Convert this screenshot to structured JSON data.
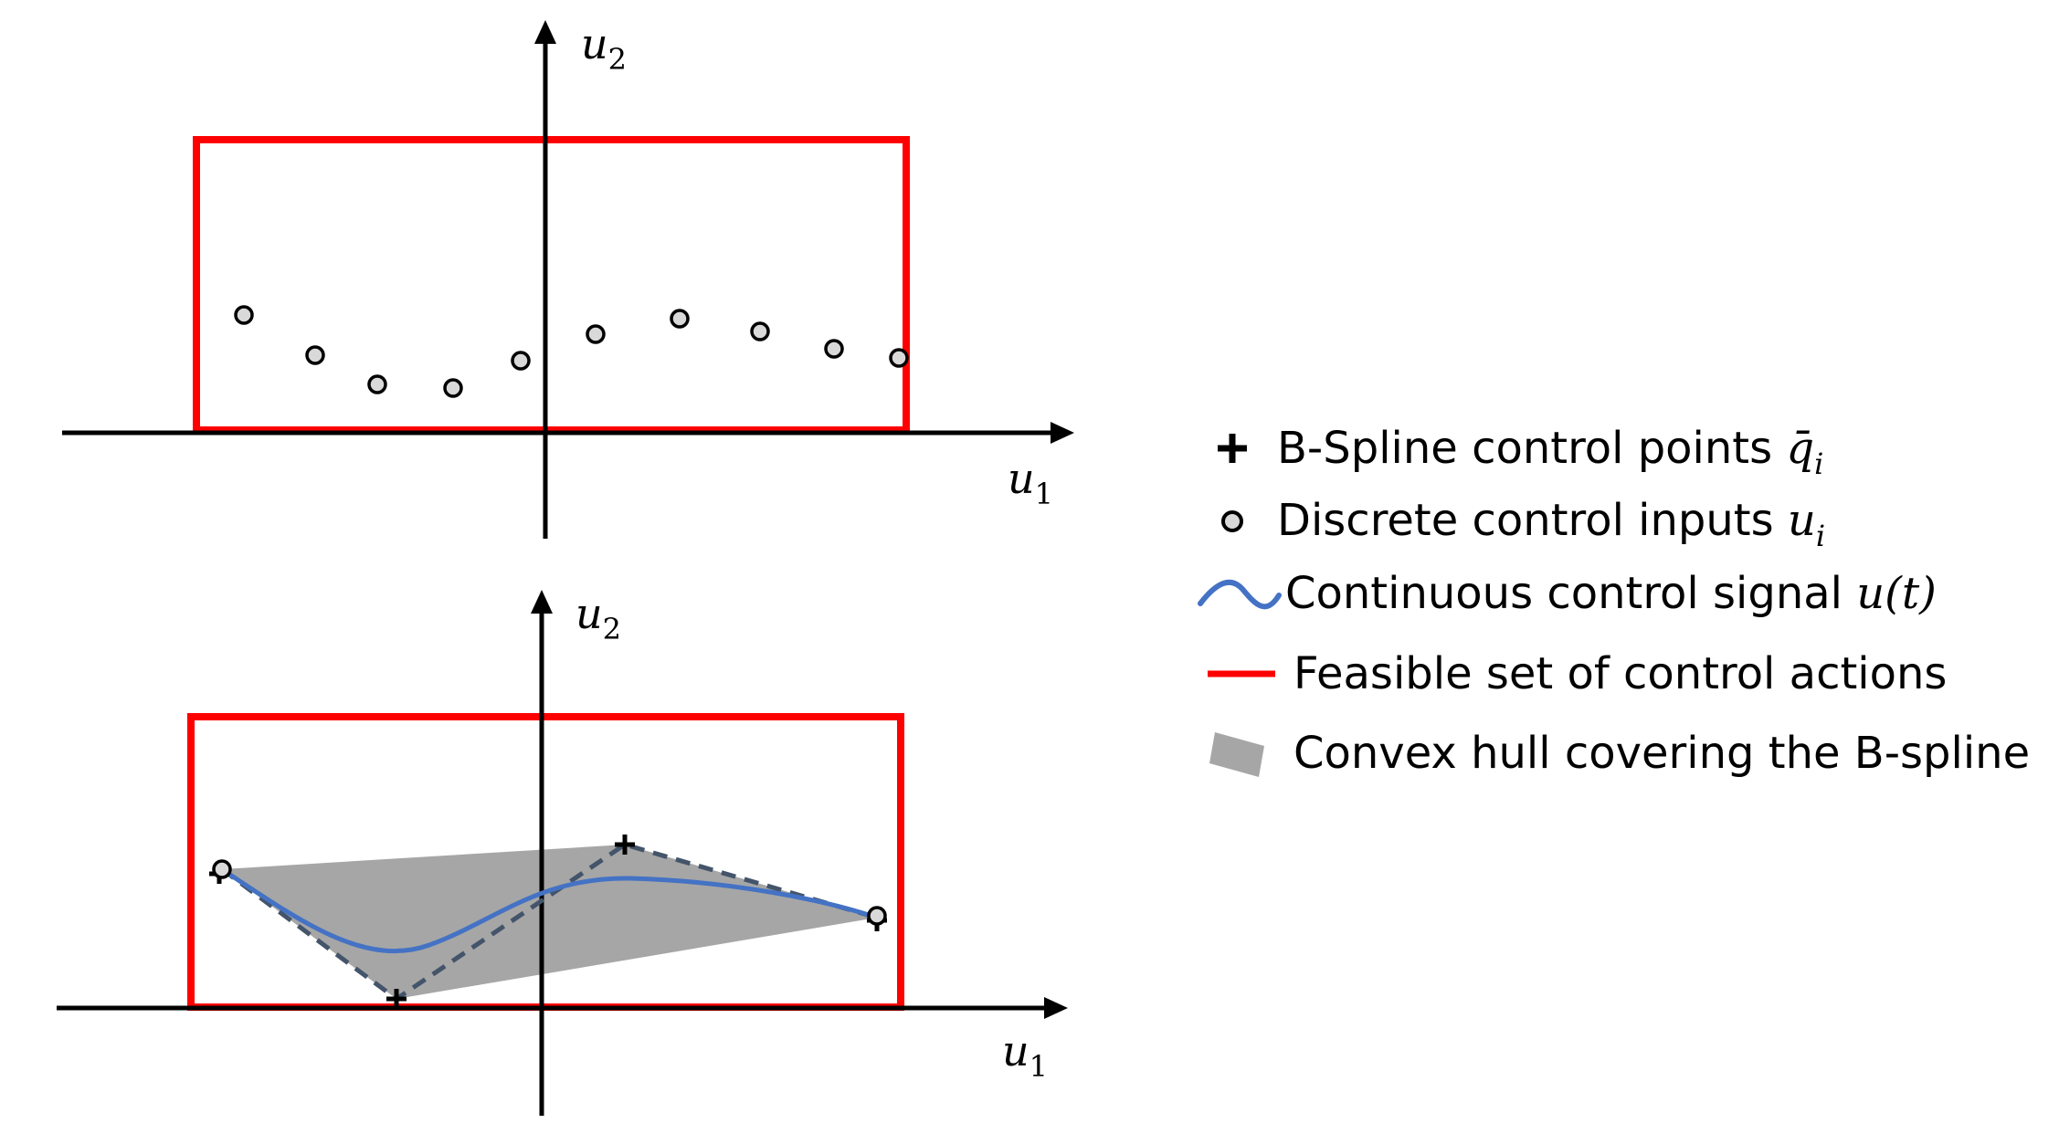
{
  "top_plot": {
    "x_axis_label": "u",
    "x_axis_subscript": "1",
    "y_axis_label": "u",
    "y_axis_subscript": "2"
  },
  "bottom_plot": {
    "x_axis_label": "u",
    "x_axis_subscript": "1",
    "y_axis_label": "u",
    "y_axis_subscript": "2"
  },
  "legend": {
    "items": [
      {
        "label": "B-Spline control points ",
        "math": "q̄",
        "math_sub": "i",
        "icon": "plus-marker-icon"
      },
      {
        "label": "Discrete control inputs ",
        "math": "u",
        "math_sub": "i",
        "icon": "circle-marker-icon"
      },
      {
        "label": "Continuous control signal ",
        "math": "u(t)",
        "math_sub": "",
        "icon": "wave-line-icon"
      },
      {
        "label": "Feasible set of control actions",
        "math": "",
        "math_sub": "",
        "icon": "red-line-icon"
      },
      {
        "label": "Convex hull covering the B-spline",
        "math": "",
        "math_sub": "",
        "icon": "gray-patch-icon"
      }
    ]
  },
  "colors": {
    "feasible_set": "#ff0000",
    "signal": "#4472c4",
    "hull": "#a6a6a6",
    "control_polygon": "#44546a",
    "axes": "#000000"
  }
}
